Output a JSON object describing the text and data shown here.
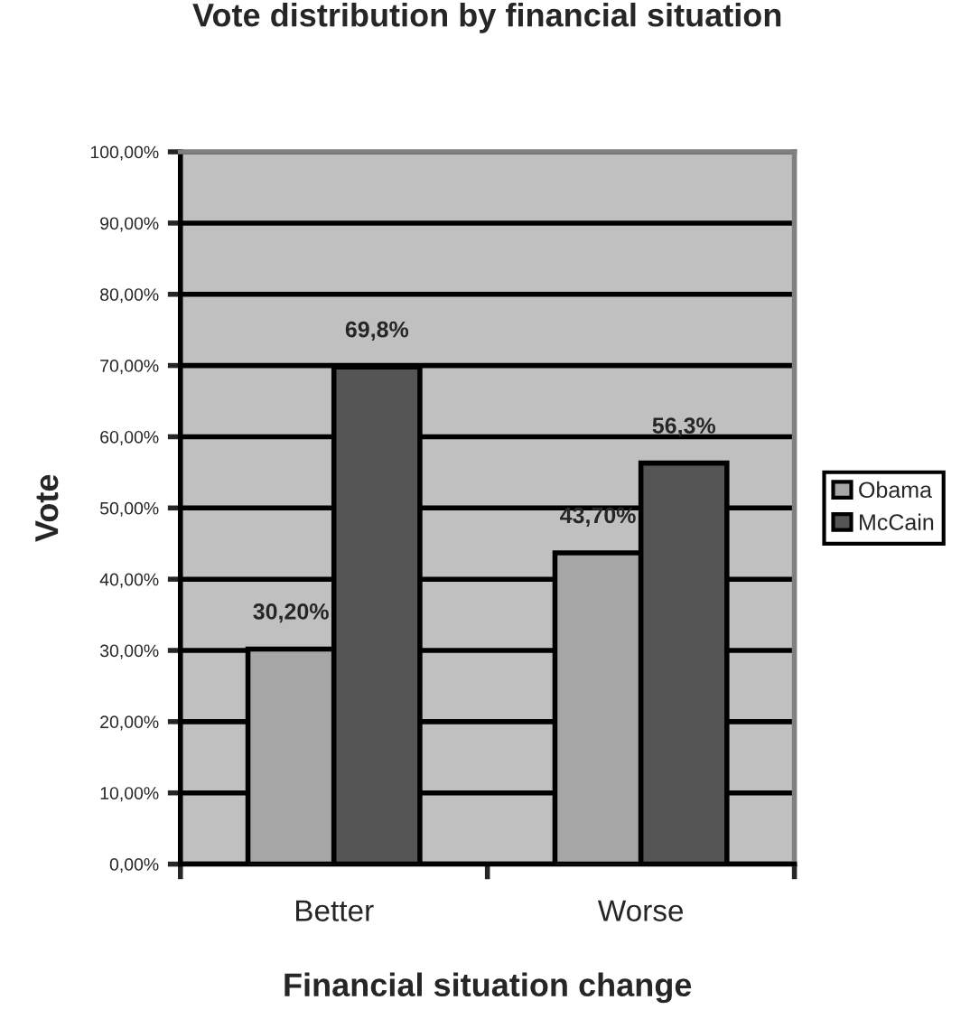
{
  "chart_data": {
    "type": "bar",
    "title": "Vote distribution by financial situation",
    "xlabel": "Financial situation change",
    "ylabel": "Vote",
    "categories": [
      "Better",
      "Worse"
    ],
    "series": [
      {
        "name": "Obama",
        "color": "#a6a6a6",
        "values": [
          30.2,
          43.7
        ],
        "value_labels": [
          "30,20%",
          "43,70%"
        ]
      },
      {
        "name": "McCain",
        "color": "#555555",
        "values": [
          69.8,
          56.3
        ],
        "value_labels": [
          "69,8%",
          "56,3%"
        ]
      }
    ],
    "ylim": [
      0,
      100
    ],
    "yticks": [
      {
        "value": 0,
        "label": "0,00%"
      },
      {
        "value": 10,
        "label": "10,00%"
      },
      {
        "value": 20,
        "label": "20,00%"
      },
      {
        "value": 30,
        "label": "30,00%"
      },
      {
        "value": 40,
        "label": "40,00%"
      },
      {
        "value": 50,
        "label": "50,00%"
      },
      {
        "value": 60,
        "label": "60,00%"
      },
      {
        "value": 70,
        "label": "70,00%"
      },
      {
        "value": 80,
        "label": "80,00%"
      },
      {
        "value": 90,
        "label": "90,00%"
      },
      {
        "value": 100,
        "label": "100,00%"
      }
    ],
    "grid": "y",
    "legend": "right"
  }
}
